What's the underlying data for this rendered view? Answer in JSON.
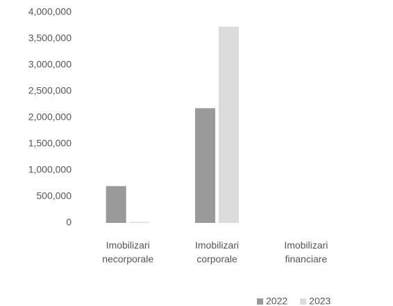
{
  "chart_data": {
    "type": "bar",
    "categories": [
      "Imobilizari necorporale",
      "Imobilizari corporale",
      "Imobilizari financiare"
    ],
    "series": [
      {
        "name": "2022",
        "color": "#9a9a9a",
        "values": [
          700000,
          2180000,
          0
        ]
      },
      {
        "name": "2023",
        "color": "#dcdcdc",
        "values": [
          20000,
          3730000,
          0
        ]
      }
    ],
    "ylim": [
      0,
      4000000
    ],
    "yticks": [
      0,
      {
        "value": 500000,
        "label": "500,000"
      },
      {
        "value": 1000000,
        "label": "1,000,000"
      },
      {
        "value": 1500000,
        "label": "1,500,000"
      },
      {
        "value": 2000000,
        "label": "2,000,000"
      },
      {
        "value": 2500000,
        "label": "2,500,000"
      },
      {
        "value": 3000000,
        "label": "3,000,000"
      },
      {
        "value": 3500000,
        "label": "3,500,000"
      },
      {
        "value": 4000000,
        "label": "4,000,000"
      }
    ],
    "grid": false,
    "legend": "bottom-right"
  }
}
